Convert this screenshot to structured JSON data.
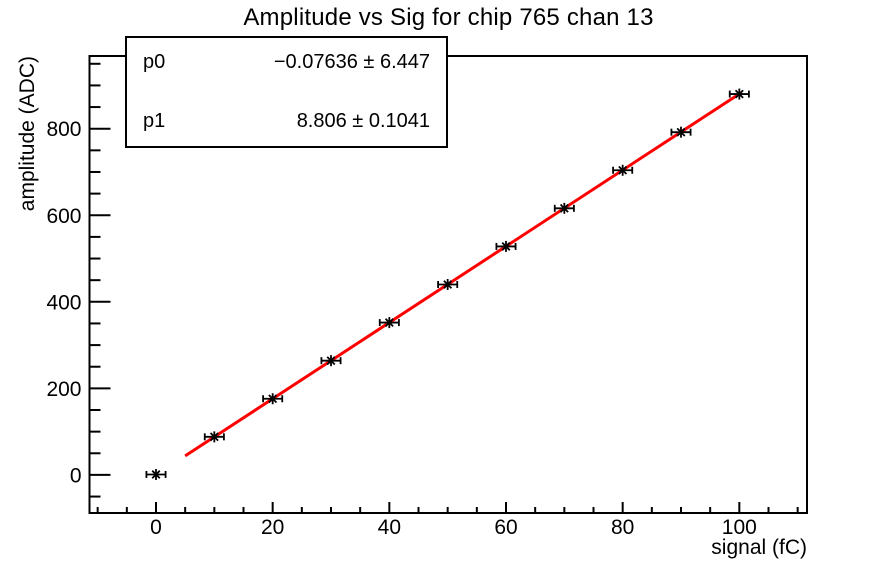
{
  "title": "Amplitude vs Sig for chip 765 chan 13",
  "stats_box": {
    "rows": [
      {
        "param": "p0",
        "value": "−0.07636 ± 6.447"
      },
      {
        "param": "p1",
        "value": "8.806 ± 0.1041"
      }
    ]
  },
  "chart_data": {
    "type": "scatter",
    "title": "Amplitude vs Sig for chip 765 chan 13",
    "xlabel": "signal (fC)",
    "ylabel": "amplitude (ADC)",
    "xlim": [
      -11.4,
      111.6
    ],
    "ylim": [
      -88,
      968
    ],
    "xticks": [
      0,
      20,
      40,
      60,
      80,
      100
    ],
    "yticks": [
      0,
      200,
      400,
      600,
      800
    ],
    "x_minor_step": 5,
    "y_minor_step": 50,
    "grid": false,
    "legend": "none",
    "points": {
      "x": [
        0,
        10,
        20,
        30,
        40,
        50,
        60,
        70,
        80,
        90,
        100
      ],
      "y": [
        1,
        88,
        176,
        264,
        352,
        440,
        528,
        616,
        704,
        792,
        880
      ],
      "xerr": 1.3,
      "marker": "asterisk",
      "color": "#000000"
    },
    "fit": {
      "label_p0": "p0",
      "label_p1": "p1",
      "p0": -0.07636,
      "p0_err": 6.447,
      "p1": 8.806,
      "p1_err": 0.1041,
      "x_range": [
        5,
        100
      ],
      "color": "#ff0000"
    },
    "frame_color": "#000000",
    "background": "#ffffff"
  }
}
